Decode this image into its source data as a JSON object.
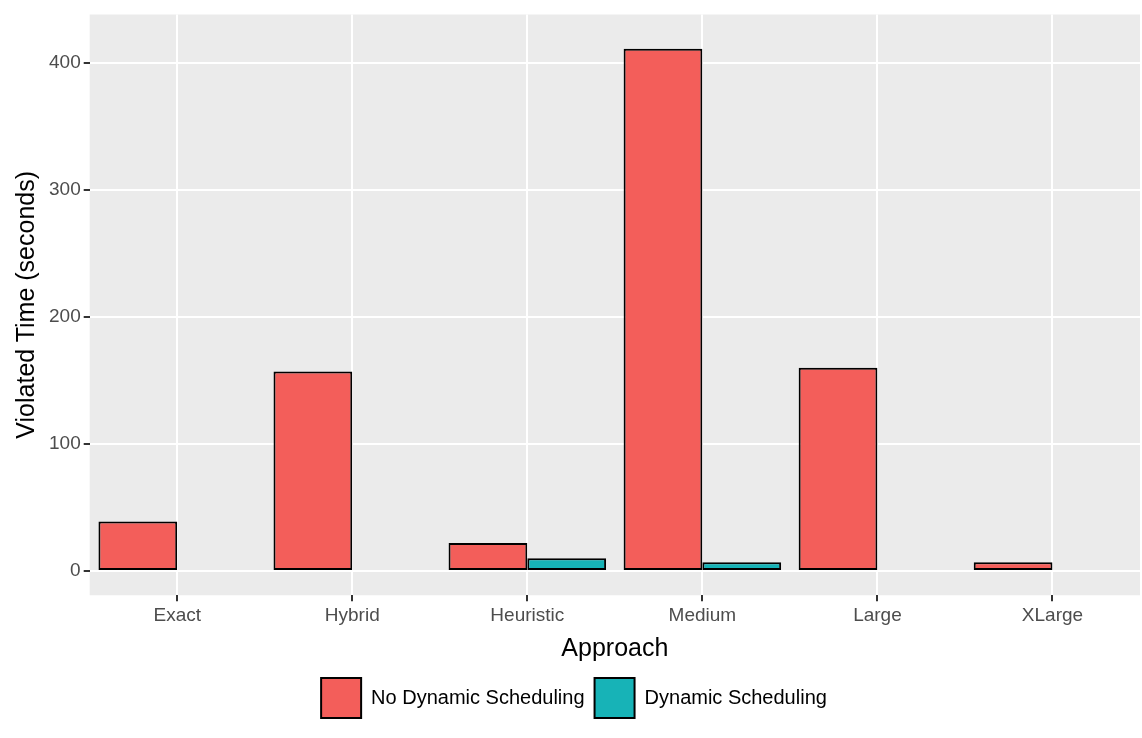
{
  "chart_data": {
    "type": "bar",
    "xlabel": "Approach",
    "ylabel": "Violated Time (seconds)",
    "categories": [
      "Exact",
      "Hybrid",
      "Heuristic",
      "Medium",
      "Large",
      "XLarge"
    ],
    "series": [
      {
        "name": "No Dynamic Scheduling",
        "color": "#f35e5a",
        "values": [
          39,
          157,
          22,
          411,
          160,
          7
        ]
      },
      {
        "name": "Dynamic Scheduling",
        "color": "#17b3b7",
        "values": [
          0,
          0,
          10,
          7,
          0,
          0
        ]
      }
    ],
    "ylim": [
      -19,
      438
    ],
    "yticks": [
      0,
      100,
      200,
      300,
      400
    ],
    "grid": true,
    "legend": "bottom"
  }
}
